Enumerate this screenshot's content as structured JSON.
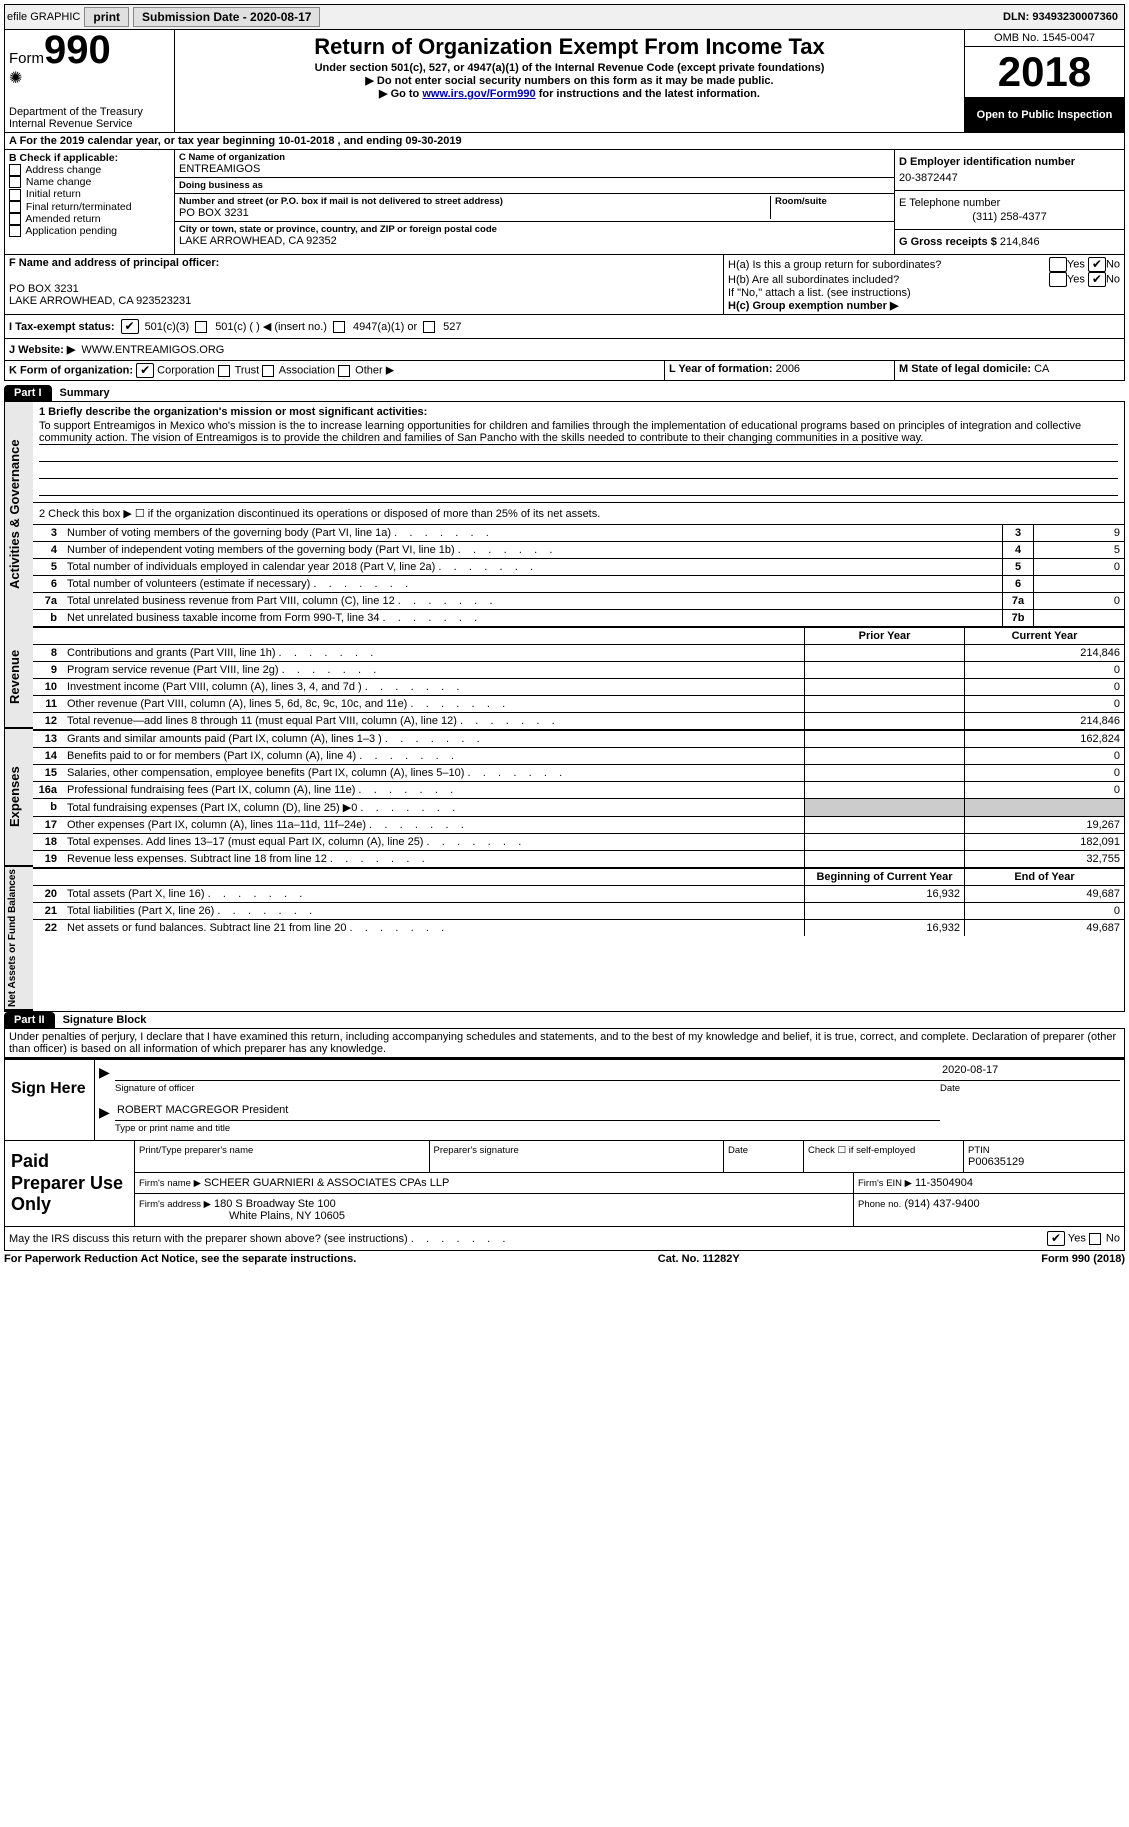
{
  "document": {
    "type": "form",
    "background_color": "#ffffff",
    "text_color": "#000000",
    "accent_black": "#000000",
    "gray_fill": "#cccccc",
    "link_color": "#0000aa"
  },
  "topbar": {
    "efile_label": "efile GRAPHIC",
    "print_btn": "print",
    "submission_label": "Submission Date - 2020-08-17",
    "dln_label": "DLN: 93493230007360"
  },
  "header": {
    "form_word": "Form",
    "form_number": "990",
    "dept": "Department of the Treasury\nInternal Revenue Service",
    "title": "Return of Organization Exempt From Income Tax",
    "subtitle": "Under section 501(c), 527, or 4947(a)(1) of the Internal Revenue Code (except private foundations)",
    "instr1": "▶ Do not enter social security numbers on this form as it may be made public.",
    "instr2_pre": "▶ Go to ",
    "instr2_link": "www.irs.gov/Form990",
    "instr2_post": " for instructions and the latest information.",
    "omb": "OMB No. 1545-0047",
    "tax_year": "2018",
    "open_public": "Open to Public Inspection"
  },
  "lineA": {
    "text": "A For the 2019 calendar year, or tax year beginning 10-01-2018    , and ending 09-30-2019"
  },
  "boxB": {
    "label": "B Check if applicable:",
    "items": [
      "Address change",
      "Name change",
      "Initial return",
      "Final return/terminated",
      "Amended return",
      "Application pending"
    ]
  },
  "boxC": {
    "name_label": "C Name of organization",
    "name": "ENTREAMIGOS",
    "dba_label": "Doing business as",
    "dba": "",
    "addr_label1": "Number and street (or P.O. box if mail is not delivered to street address)",
    "addr_label2": "Room/suite",
    "addr1": "PO BOX 3231",
    "addr_label3": "City or town, state or province, country, and ZIP or foreign postal code",
    "addr2": "LAKE ARROWHEAD, CA  92352"
  },
  "boxD": {
    "label": "D Employer identification number",
    "value": "20-3872447"
  },
  "boxE": {
    "label": "E Telephone number",
    "value": "(311) 258-4377"
  },
  "boxG": {
    "label": "G Gross receipts $",
    "value": "214,846"
  },
  "boxF": {
    "label": "F Name and address of principal officer:",
    "line1": "",
    "line2": "PO BOX 3231",
    "line3": "LAKE ARROWHEAD, CA  923523231"
  },
  "boxH": {
    "ha_label": "H(a)  Is this a group return for subordinates?",
    "hb_label": "H(b)  Are all subordinates included?",
    "hb_note": "If \"No,\" attach a list. (see instructions)",
    "hc_label": "H(c)  Group exemption number ▶",
    "ha_yes": false,
    "ha_no": true,
    "hb_yes": false,
    "hb_no": true
  },
  "taxStatus": {
    "label": "I   Tax-exempt status:",
    "o1": "501(c)(3)",
    "o1_checked": true,
    "o2": "501(c) (  ) ◀ (insert no.)",
    "o3": "4947(a)(1) or",
    "o4": "527"
  },
  "website": {
    "label": "J   Website: ▶",
    "value": "WWW.ENTREAMIGOS.ORG"
  },
  "lineK": {
    "label": "K Form of organization:",
    "opts": [
      "Corporation",
      "Trust",
      "Association",
      "Other ▶"
    ],
    "checked_index": 0
  },
  "lineL": {
    "label": "L Year of formation:",
    "value": "2006"
  },
  "lineM": {
    "label": "M State of legal domicile:",
    "value": "CA"
  },
  "part1": {
    "tab": "Part I",
    "title": "Summary",
    "q1_label": "1   Briefly describe the organization's mission or most significant activities:",
    "q1_text": "To support Entreamigos in Mexico who's mission is the to increase learning opportunities for children and families through the implementation of educational programs based on principles of integration and collective community action. The vision of Entreamigos is to provide the children and families of San Pancho with the skills needed to contribute to their changing communities in a positive way.",
    "q2": "2    Check this box ▶ ☐  if the organization discontinued its operations or disposed of more than 25% of its net assets.",
    "lines_gov": [
      {
        "no": "3",
        "text": "Number of voting members of the governing body (Part VI, line 1a)",
        "box": "3",
        "val": "9"
      },
      {
        "no": "4",
        "text": "Number of independent voting members of the governing body (Part VI, line 1b)",
        "box": "4",
        "val": "5"
      },
      {
        "no": "5",
        "text": "Total number of individuals employed in calendar year 2018 (Part V, line 2a)",
        "box": "5",
        "val": "0"
      },
      {
        "no": "6",
        "text": "Total number of volunteers (estimate if necessary)",
        "box": "6",
        "val": ""
      },
      {
        "no": "7a",
        "text": "Total unrelated business revenue from Part VIII, column (C), line 12",
        "box": "7a",
        "val": "0"
      },
      {
        "no": "b",
        "text": "Net unrelated business taxable income from Form 990-T, line 34",
        "box": "7b",
        "val": ""
      }
    ],
    "col_hdr_prior": "Prior Year",
    "col_hdr_curr": "Current Year",
    "revenue": [
      {
        "no": "8",
        "text": "Contributions and grants (Part VIII, line 1h)",
        "a": "",
        "b": "214,846"
      },
      {
        "no": "9",
        "text": "Program service revenue (Part VIII, line 2g)",
        "a": "",
        "b": "0"
      },
      {
        "no": "10",
        "text": "Investment income (Part VIII, column (A), lines 3, 4, and 7d )",
        "a": "",
        "b": "0"
      },
      {
        "no": "11",
        "text": "Other revenue (Part VIII, column (A), lines 5, 6d, 8c, 9c, 10c, and 11e)",
        "a": "",
        "b": "0"
      },
      {
        "no": "12",
        "text": "Total revenue—add lines 8 through 11 (must equal Part VIII, column (A), line 12)",
        "a": "",
        "b": "214,846"
      }
    ],
    "expenses": [
      {
        "no": "13",
        "text": "Grants and similar amounts paid (Part IX, column (A), lines 1–3 )",
        "a": "",
        "b": "162,824"
      },
      {
        "no": "14",
        "text": "Benefits paid to or for members (Part IX, column (A), line 4)",
        "a": "",
        "b": "0"
      },
      {
        "no": "15",
        "text": "Salaries, other compensation, employee benefits (Part IX, column (A), lines 5–10)",
        "a": "",
        "b": "0"
      },
      {
        "no": "16a",
        "text": "Professional fundraising fees (Part IX, column (A), line 11e)",
        "a": "",
        "b": "0"
      },
      {
        "no": "b",
        "text": "Total fundraising expenses (Part IX, column (D), line 25) ▶0",
        "a": "gray",
        "b": "gray"
      },
      {
        "no": "17",
        "text": "Other expenses (Part IX, column (A), lines 11a–11d, 11f–24e)",
        "a": "",
        "b": "19,267"
      },
      {
        "no": "18",
        "text": "Total expenses. Add lines 13–17 (must equal Part IX, column (A), line 25)",
        "a": "",
        "b": "182,091"
      },
      {
        "no": "19",
        "text": "Revenue less expenses. Subtract line 18 from line 12",
        "a": "",
        "b": "32,755"
      }
    ],
    "col_hdr_begin": "Beginning of Current Year",
    "col_hdr_end": "End of Year",
    "netassets": [
      {
        "no": "20",
        "text": "Total assets (Part X, line 16)",
        "a": "16,932",
        "b": "49,687"
      },
      {
        "no": "21",
        "text": "Total liabilities (Part X, line 26)",
        "a": "",
        "b": "0"
      },
      {
        "no": "22",
        "text": "Net assets or fund balances. Subtract line 21 from line 20",
        "a": "16,932",
        "b": "49,687"
      }
    ],
    "side_labels": {
      "gov": "Activities & Governance",
      "rev": "Revenue",
      "exp": "Expenses",
      "net": "Net Assets or Fund Balances"
    }
  },
  "part2": {
    "tab": "Part II",
    "title": "Signature Block",
    "perjury": "Under penalties of perjury, I declare that I have examined this return, including accompanying schedules and statements, and to the best of my knowledge and belief, it is true, correct, and complete. Declaration of preparer (other than officer) is based on all information of which preparer has any knowledge.",
    "sign_here": "Sign Here",
    "sig_officer_label": "Signature of officer",
    "date_label": "Date",
    "sig_date": "2020-08-17",
    "name_title": "ROBERT MACGREGOR  President",
    "name_title_label": "Type or print name and title",
    "paid_label": "Paid Preparer Use Only",
    "p_name_label": "Print/Type preparer's name",
    "p_sig_label": "Preparer's signature",
    "p_date_label": "Date",
    "p_self_label": "Check ☐ if self-employed",
    "ptin_label": "PTIN",
    "ptin": "P00635129",
    "firm_name_label": "Firm's name    ▶",
    "firm_name": "SCHEER GUARNIERI & ASSOCIATES CPAs LLP",
    "firm_ein_label": "Firm's EIN ▶",
    "firm_ein": "11-3504904",
    "firm_addr_label": "Firm's address ▶",
    "firm_addr1": "180 S Broadway Ste 100",
    "firm_addr2": "White Plains, NY  10605",
    "firm_phone_label": "Phone no.",
    "firm_phone": "(914) 437-9400",
    "discuss": "May the IRS discuss this return with the preparer shown above? (see instructions)",
    "discuss_yes": true,
    "discuss_no": false
  },
  "footer": {
    "left": "For Paperwork Reduction Act Notice, see the separate instructions.",
    "mid": "Cat. No. 11282Y",
    "right": "Form 990 (2018)"
  }
}
